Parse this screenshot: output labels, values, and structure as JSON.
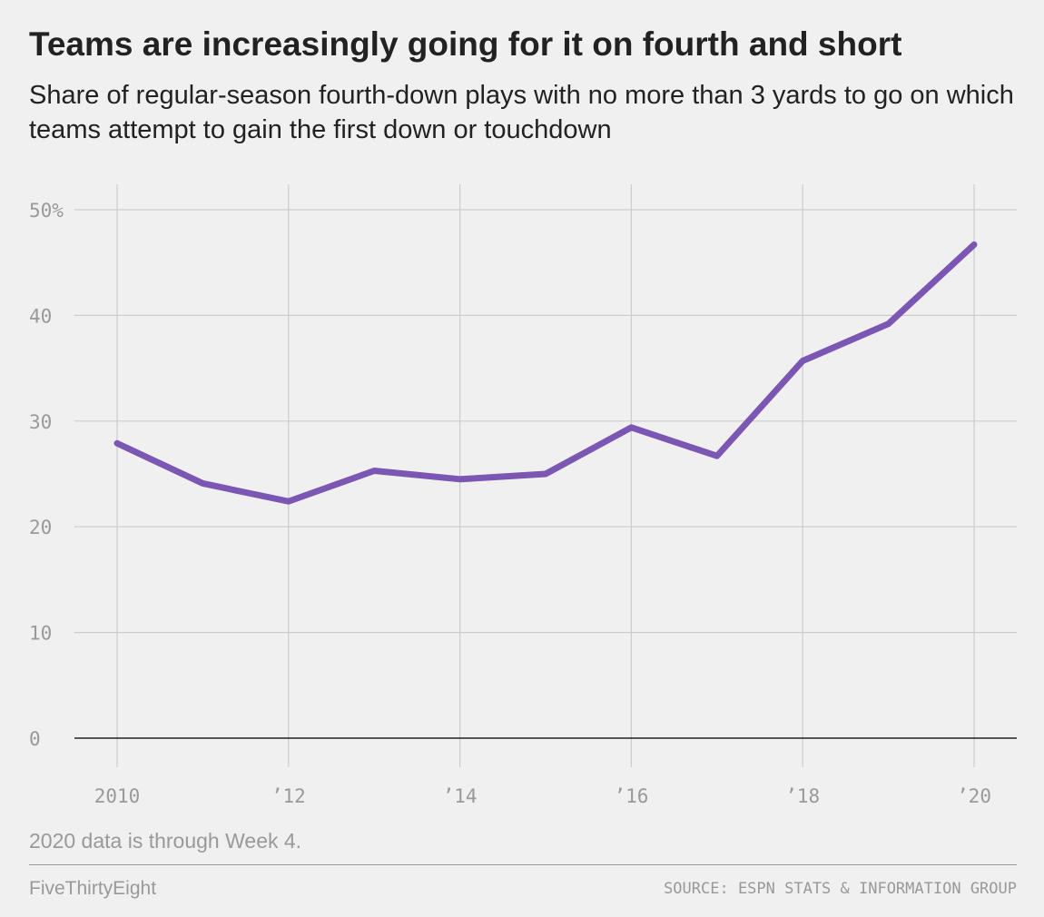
{
  "colors": {
    "background": "#f0f0f0",
    "line": "#7b56b3",
    "grid": "#cccccc",
    "baseline": "#222222",
    "muted_text": "#999999",
    "title_text": "#222222"
  },
  "chart_data": {
    "type": "line",
    "title": "Teams are increasingly going for it on fourth and short",
    "subtitle": "Share of regular-season fourth-down plays with no more than 3 yards to go on which teams attempt to gain the first down or touchdown",
    "xlabel": "",
    "ylabel": "",
    "x": [
      2010,
      2011,
      2012,
      2013,
      2014,
      2015,
      2016,
      2017,
      2018,
      2019,
      2020
    ],
    "series": [
      {
        "values": [
          27.9,
          24.1,
          22.4,
          25.3,
          24.5,
          25.0,
          29.4,
          26.7,
          35.7,
          39.2,
          46.7
        ]
      }
    ],
    "xlim": [
      2010,
      2020
    ],
    "ylim": [
      0,
      50
    ],
    "yticks": [
      0,
      10,
      20,
      30,
      40,
      50
    ],
    "ytick_labels": [
      "0",
      "10",
      "20",
      "30",
      "40",
      "50%"
    ],
    "xticks": [
      2010,
      2012,
      2014,
      2016,
      2018,
      2020
    ],
    "xtick_labels": [
      "2010",
      "’12",
      "’14",
      "’16",
      "’18",
      "’20"
    ],
    "grid": true,
    "note": "2020 data is through Week 4."
  },
  "footer": {
    "brand": "FiveThirtyEight",
    "source": "SOURCE: ESPN STATS & INFORMATION GROUP"
  }
}
